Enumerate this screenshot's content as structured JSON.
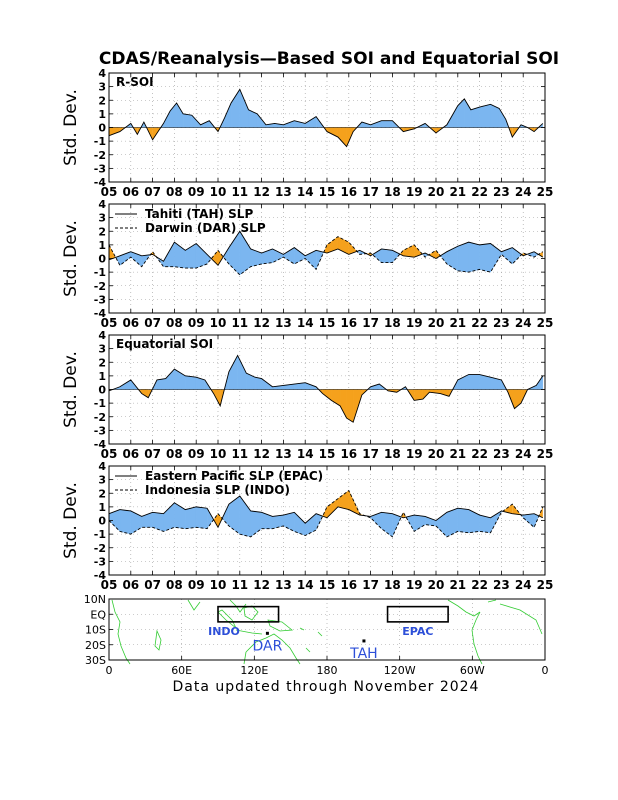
{
  "title": "CDAS/Reanalysis—Based SOI and Equatorial SOI",
  "footer": "Data updated through November 2024",
  "colors": {
    "positive": "#7bb6f0",
    "negative": "#f5a11c",
    "line": "#000000",
    "grid": "#999999",
    "coast": "#33cc33",
    "map_label": "#2d4fd8"
  },
  "chart_data": [
    {
      "type": "area",
      "label": "R-SOI",
      "ylabel": "Std. Dev.",
      "ylim": [
        -4,
        4
      ],
      "yticks": [
        "4",
        "3",
        "2",
        "1",
        "0",
        "-1",
        "-2",
        "-3",
        "-4"
      ],
      "xticks": [
        "05",
        "06",
        "07",
        "08",
        "09",
        "10",
        "11",
        "12",
        "13",
        "14",
        "15",
        "16",
        "17",
        "18",
        "19",
        "20",
        "21",
        "22",
        "23",
        "24",
        "25"
      ],
      "grid": true,
      "x": [
        2005.0,
        2005.5,
        2006.0,
        2006.3,
        2006.6,
        2007.0,
        2007.5,
        2007.8,
        2008.1,
        2008.4,
        2008.8,
        2009.2,
        2009.6,
        2010.0,
        2010.3,
        2010.6,
        2011.0,
        2011.4,
        2011.8,
        2012.2,
        2012.6,
        2013.0,
        2013.5,
        2014.0,
        2014.5,
        2015.0,
        2015.5,
        2015.9,
        2016.2,
        2016.6,
        2017.0,
        2017.5,
        2018.0,
        2018.5,
        2019.0,
        2019.5,
        2020.0,
        2020.5,
        2021.0,
        2021.3,
        2021.6,
        2022.0,
        2022.5,
        2022.9,
        2023.2,
        2023.5,
        2023.9,
        2024.2,
        2024.5,
        2024.9
      ],
      "series": [
        {
          "values": [
            -0.6,
            -0.3,
            0.3,
            -0.5,
            0.4,
            -0.9,
            0.3,
            1.2,
            1.8,
            1.0,
            0.9,
            0.2,
            0.5,
            -0.3,
            0.7,
            1.8,
            2.8,
            1.3,
            1.0,
            0.2,
            0.3,
            0.2,
            0.5,
            0.3,
            0.8,
            -0.3,
            -0.7,
            -1.4,
            -0.3,
            0.4,
            0.2,
            0.5,
            0.5,
            -0.3,
            -0.1,
            0.3,
            -0.4,
            0.2,
            1.6,
            2.1,
            1.3,
            1.5,
            1.7,
            1.4,
            0.6,
            -0.7,
            0.2,
            0.0,
            -0.3,
            0.3
          ]
        }
      ]
    },
    {
      "type": "area",
      "ylabel": "Std. Dev.",
      "ylim": [
        -4,
        4
      ],
      "yticks": [
        "4",
        "3",
        "2",
        "1",
        "0",
        "-1",
        "-2",
        "-3",
        "-4"
      ],
      "xticks": [
        "05",
        "06",
        "07",
        "08",
        "09",
        "10",
        "11",
        "12",
        "13",
        "14",
        "15",
        "16",
        "17",
        "18",
        "19",
        "20",
        "21",
        "22",
        "23",
        "24",
        "25"
      ],
      "grid": true,
      "legend": {
        "position": "top-left",
        "entries": [
          "Tahiti (TAH) SLP",
          "Darwin (DAR) SLP"
        ]
      },
      "x": [
        2005.0,
        2005.5,
        2006.0,
        2006.5,
        2007.0,
        2007.5,
        2008.0,
        2008.5,
        2009.0,
        2009.5,
        2010.0,
        2010.5,
        2011.0,
        2011.5,
        2012.0,
        2012.5,
        2013.0,
        2013.5,
        2014.0,
        2014.5,
        2015.0,
        2015.5,
        2016.0,
        2016.5,
        2017.0,
        2017.5,
        2018.0,
        2018.5,
        2019.0,
        2019.5,
        2020.0,
        2020.5,
        2021.0,
        2021.5,
        2022.0,
        2022.5,
        2023.0,
        2023.5,
        2024.0,
        2024.5,
        2024.9
      ],
      "series": [
        {
          "name": "Tahiti (TAH) SLP",
          "values": [
            -0.1,
            0.2,
            0.5,
            0.2,
            0.3,
            -0.2,
            1.2,
            0.6,
            1.1,
            0.3,
            -0.5,
            0.8,
            2.0,
            0.7,
            0.4,
            0.7,
            0.3,
            0.8,
            0.2,
            0.6,
            0.4,
            0.7,
            0.3,
            0.6,
            0.2,
            0.7,
            0.6,
            0.2,
            0.1,
            0.4,
            0.0,
            0.5,
            0.9,
            1.2,
            1.0,
            1.1,
            0.5,
            0.8,
            0.2,
            0.5,
            0.1
          ]
        },
        {
          "name": "Darwin (DAR) SLP",
          "values": [
            1.0,
            -0.5,
            0.1,
            -0.6,
            0.5,
            -0.6,
            -0.6,
            -0.7,
            -0.7,
            -0.4,
            0.6,
            -0.4,
            -1.2,
            -0.6,
            -0.4,
            -0.3,
            0.1,
            -0.4,
            0.0,
            -0.8,
            1.0,
            1.6,
            1.2,
            0.3,
            0.4,
            -0.3,
            -0.3,
            0.6,
            1.0,
            0.1,
            0.6,
            -0.4,
            -0.9,
            -1.0,
            -0.8,
            -1.0,
            0.3,
            -0.4,
            0.4,
            0.1,
            0.5
          ]
        }
      ]
    },
    {
      "type": "area",
      "label": "Equatorial SOI",
      "ylabel": "Std. Dev.",
      "ylim": [
        -4,
        4
      ],
      "yticks": [
        "4",
        "3",
        "2",
        "1",
        "0",
        "-1",
        "-2",
        "-3",
        "-4"
      ],
      "xticks": [
        "05",
        "06",
        "07",
        "08",
        "09",
        "10",
        "11",
        "12",
        "13",
        "14",
        "15",
        "16",
        "17",
        "18",
        "19",
        "20",
        "21",
        "22",
        "23",
        "24",
        "25"
      ],
      "grid": true,
      "x": [
        2005.0,
        2005.5,
        2006.0,
        2006.5,
        2006.8,
        2007.2,
        2007.6,
        2008.0,
        2008.5,
        2009.0,
        2009.4,
        2009.8,
        2010.1,
        2010.5,
        2010.9,
        2011.3,
        2011.7,
        2012.0,
        2012.5,
        2013.0,
        2013.5,
        2014.0,
        2014.5,
        2014.8,
        2015.2,
        2015.6,
        2015.9,
        2016.2,
        2016.6,
        2017.0,
        2017.4,
        2017.8,
        2018.2,
        2018.6,
        2019.0,
        2019.4,
        2019.7,
        2020.2,
        2020.6,
        2021.0,
        2021.5,
        2022.0,
        2022.5,
        2023.0,
        2023.3,
        2023.6,
        2023.9,
        2024.2,
        2024.6,
        2024.9
      ],
      "series": [
        {
          "values": [
            -0.1,
            0.2,
            0.7,
            -0.3,
            -0.6,
            0.7,
            0.8,
            1.5,
            1.0,
            0.9,
            0.7,
            -0.3,
            -1.2,
            1.3,
            2.5,
            1.2,
            0.9,
            0.8,
            0.2,
            0.3,
            0.4,
            0.5,
            0.2,
            -0.3,
            -0.8,
            -1.2,
            -2.1,
            -2.4,
            -0.4,
            0.2,
            0.4,
            -0.1,
            -0.2,
            0.2,
            -0.8,
            -0.7,
            -0.2,
            -0.3,
            -0.5,
            0.7,
            1.1,
            1.1,
            0.9,
            0.7,
            -0.2,
            -1.4,
            -1.0,
            0.0,
            0.3,
            1.0
          ]
        }
      ]
    },
    {
      "type": "area",
      "ylabel": "Std. Dev.",
      "ylim": [
        -4,
        4
      ],
      "yticks": [
        "4",
        "3",
        "2",
        "1",
        "0",
        "-1",
        "-2",
        "-3",
        "-4"
      ],
      "xticks": [
        "05",
        "06",
        "07",
        "08",
        "09",
        "10",
        "11",
        "12",
        "13",
        "14",
        "15",
        "16",
        "17",
        "18",
        "19",
        "20",
        "21",
        "22",
        "23",
        "24",
        "25"
      ],
      "grid": true,
      "legend": {
        "position": "top-left",
        "entries": [
          "Eastern Pacific SLP (EPAC)",
          "Indonesia SLP (INDO)"
        ]
      },
      "x": [
        2005.0,
        2005.5,
        2006.0,
        2006.5,
        2007.0,
        2007.5,
        2008.0,
        2008.5,
        2009.0,
        2009.5,
        2010.0,
        2010.5,
        2011.0,
        2011.5,
        2012.0,
        2012.5,
        2013.0,
        2013.5,
        2014.0,
        2014.5,
        2015.0,
        2015.5,
        2016.0,
        2016.5,
        2017.0,
        2017.5,
        2018.0,
        2018.5,
        2019.0,
        2019.5,
        2020.0,
        2020.5,
        2021.0,
        2021.5,
        2022.0,
        2022.5,
        2023.0,
        2023.5,
        2024.0,
        2024.5,
        2024.9
      ],
      "series": [
        {
          "name": "Eastern Pacific SLP (EPAC)",
          "values": [
            0.5,
            0.8,
            0.7,
            0.3,
            0.6,
            0.5,
            1.3,
            0.8,
            1.0,
            0.9,
            -0.5,
            1.2,
            1.8,
            0.7,
            0.6,
            0.3,
            0.4,
            0.6,
            -0.2,
            0.5,
            0.2,
            1.0,
            0.8,
            0.4,
            0.3,
            0.6,
            0.5,
            0.2,
            0.4,
            0.3,
            0.0,
            0.6,
            0.9,
            0.8,
            0.4,
            0.2,
            0.7,
            0.5,
            0.4,
            0.5,
            0.2
          ]
        },
        {
          "name": "Indonesia SLP (INDO)",
          "values": [
            0.0,
            -0.8,
            -1.0,
            -0.5,
            -0.5,
            -0.8,
            -0.5,
            -0.6,
            -0.5,
            -0.6,
            0.5,
            -0.4,
            -1.0,
            -1.2,
            -0.6,
            -0.6,
            -0.4,
            -0.8,
            -1.1,
            -0.7,
            1.0,
            1.6,
            2.2,
            0.5,
            0.2,
            -0.6,
            -1.2,
            0.6,
            -0.8,
            -0.3,
            -0.4,
            -1.2,
            -0.8,
            -0.9,
            -0.8,
            -0.9,
            0.6,
            1.2,
            0.2,
            -0.5,
            1.0
          ]
        }
      ]
    }
  ],
  "map": {
    "yticks": [
      "10N",
      "EQ",
      "10S",
      "20S",
      "30S"
    ],
    "xticks": [
      "0",
      "60E",
      "120E",
      "180",
      "120W",
      "60W",
      "0"
    ],
    "regions": [
      {
        "name": "INDO",
        "lon": [
          90,
          140
        ],
        "lat": [
          -5,
          5
        ]
      },
      {
        "name": "EPAC",
        "lon": [
          230,
          280
        ],
        "lat": [
          -5,
          5
        ]
      }
    ],
    "stations": [
      {
        "name": "DAR",
        "lon": 130.8,
        "lat": -12.5
      },
      {
        "name": "TAH",
        "lon": 210.5,
        "lat": -17.5
      }
    ]
  }
}
